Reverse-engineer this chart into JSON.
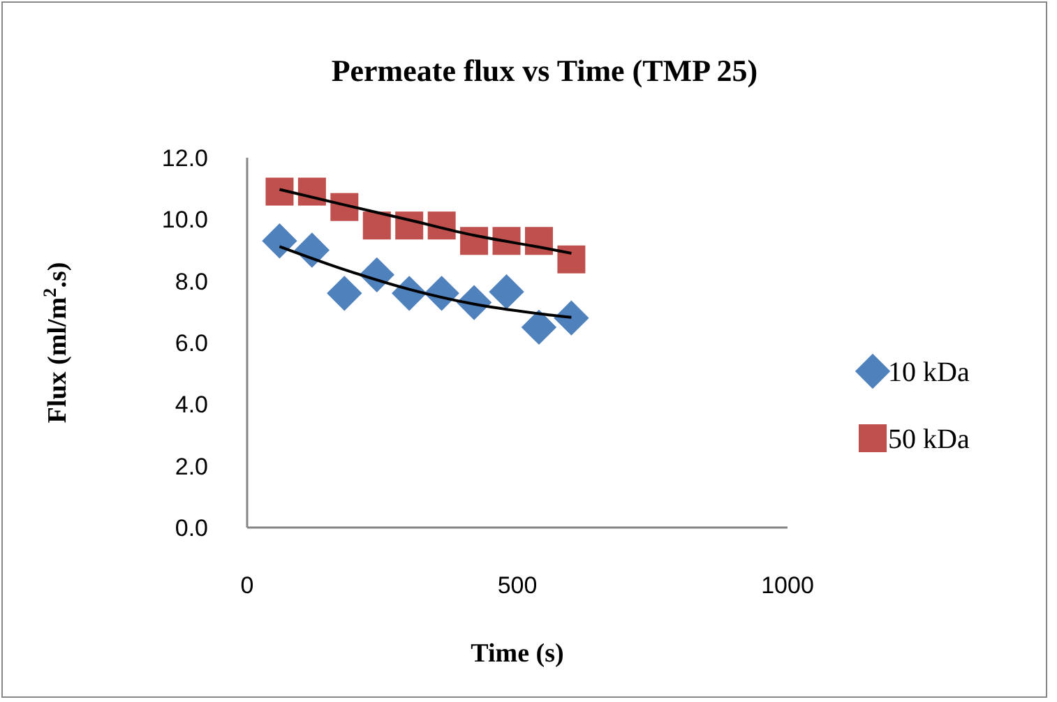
{
  "chart_data": {
    "type": "scatter",
    "title": "Permeate flux vs Time (TMP 25)",
    "xlabel": "Time (s)",
    "ylabel": "Flux (ml/m$^{2}$.s)",
    "x": [
      60,
      120,
      180,
      240,
      300,
      360,
      420,
      480,
      540,
      600
    ],
    "series": [
      {
        "name": "10 kDa",
        "color": "#4f81bd",
        "marker": "diamond",
        "values": [
          9.3,
          9.0,
          7.6,
          8.2,
          7.6,
          7.6,
          7.3,
          7.65,
          6.5,
          6.8
        ]
      },
      {
        "name": "50 kDa",
        "color": "#c0504d",
        "marker": "square",
        "values": [
          10.9,
          10.9,
          10.4,
          9.8,
          9.8,
          9.8,
          9.3,
          9.3,
          9.3,
          8.7
        ]
      },
      {
        "type": "line",
        "color": "#000000",
        "x": [
          60,
          180,
          300,
          420,
          540,
          600
        ],
        "values": [
          9.12,
          8.37,
          7.73,
          7.25,
          6.94,
          6.82
        ]
      },
      {
        "type": "line",
        "color": "#000000",
        "x": [
          60,
          180,
          300,
          420,
          540,
          600
        ],
        "values": [
          10.97,
          10.47,
          9.98,
          9.48,
          9.1,
          8.9
        ]
      }
    ],
    "xlim": [
      0,
      1000
    ],
    "xticks": [
      0,
      500,
      1000
    ],
    "ylim": [
      0,
      12
    ],
    "yticks": [
      {
        "value": 0,
        "label": "0.0"
      },
      {
        "value": 2,
        "label": "2.0"
      },
      {
        "value": 4,
        "label": "4.0"
      },
      {
        "value": 6,
        "label": "6.0"
      },
      {
        "value": 8,
        "label": "8.0"
      },
      {
        "value": 10,
        "label": "10.0"
      },
      {
        "value": 12,
        "label": "12.0"
      }
    ],
    "grid": false,
    "legend": "right"
  }
}
